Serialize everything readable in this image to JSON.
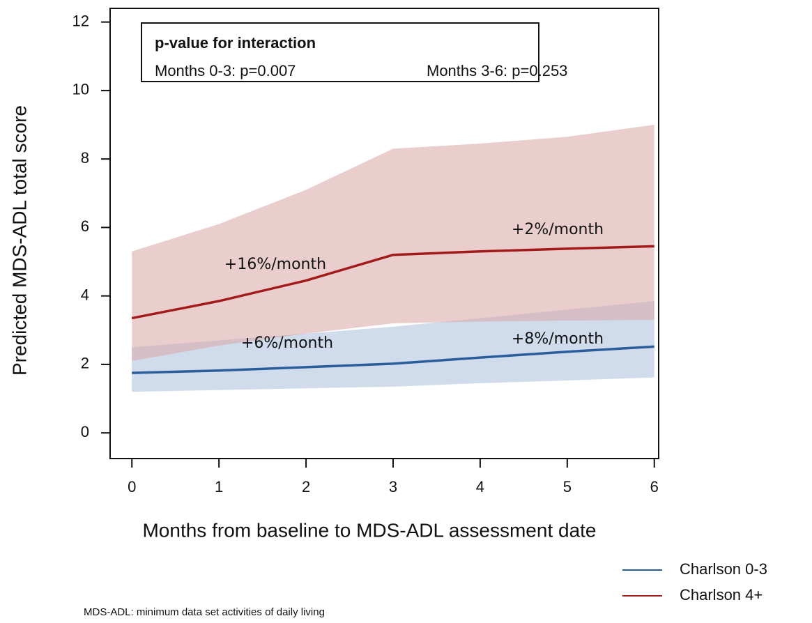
{
  "chart_data": {
    "type": "line",
    "xlabel": "Months from baseline to MDS-ADL assessment date",
    "ylabel": "Predicted MDS-ADL total score",
    "x": [
      0,
      1,
      2,
      3,
      4,
      5,
      6
    ],
    "xlim": [
      -0.25,
      6.05
    ],
    "ylim": [
      -0.75,
      12.4
    ],
    "xticks": [
      0,
      1,
      2,
      3,
      4,
      5,
      6
    ],
    "yticks": [
      0,
      2,
      4,
      6,
      8,
      10,
      12
    ],
    "series": [
      {
        "name": "Charlson 0-3",
        "color": "#2a5d9c",
        "band_color": "#a9c0da",
        "values": [
          1.75,
          1.82,
          1.92,
          2.02,
          2.2,
          2.37,
          2.52
        ],
        "lower": [
          1.2,
          1.25,
          1.3,
          1.35,
          1.45,
          1.53,
          1.62
        ],
        "upper": [
          2.5,
          2.7,
          2.9,
          3.1,
          3.35,
          3.6,
          3.85
        ]
      },
      {
        "name": "Charlson 4+",
        "color": "#a31a1a",
        "band_color": "#d9a5a5",
        "values": [
          3.35,
          3.85,
          4.45,
          5.2,
          5.3,
          5.38,
          5.45
        ],
        "lower": [
          2.1,
          2.55,
          2.9,
          3.2,
          3.25,
          3.28,
          3.3
        ],
        "upper": [
          5.3,
          6.1,
          7.1,
          8.3,
          8.45,
          8.65,
          9.0
        ]
      }
    ],
    "box_title": "p-value for interaction",
    "box_texts": [
      "Months 0-3:  p=0.007",
      "Months 3-6: p=0.253"
    ],
    "annotations": [
      "+16%/month",
      "+2%/month",
      "+6%/month",
      "+8%/month"
    ],
    "footnote": "MDS-ADL: minimum data set activities of daily living",
    "legend": "bottom-right"
  }
}
